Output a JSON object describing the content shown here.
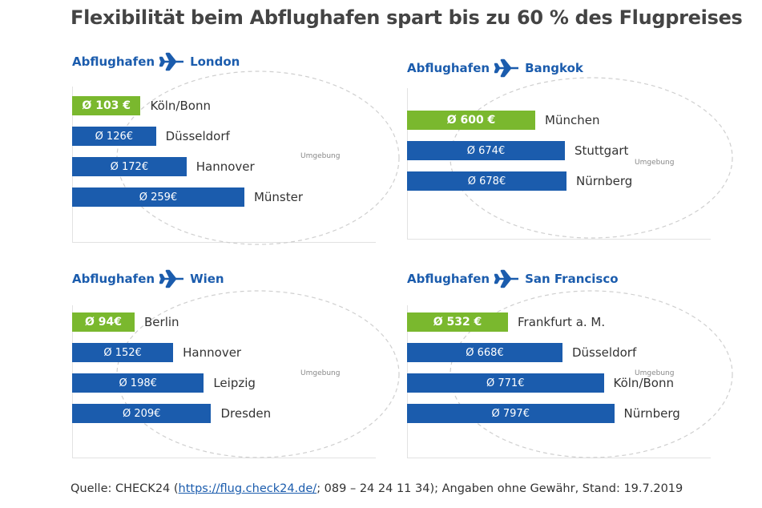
{
  "title": "Flexibilität beim Abflughafen spart bis zu 60 % des Flugpreises",
  "source": {
    "prefix": "Quelle: CHECK24 (",
    "link": "https://flug.check24.de/",
    "suffix": "; 089 – 24 24 11 34); Angaben ohne Gewähr, Stand: 19.7.2019"
  },
  "colors": {
    "highlight": "#7ab82e",
    "bar": "#1b5cad",
    "heading": "#1b5cad"
  },
  "icons": {
    "destination": "airplane-icon"
  },
  "chart_data": [
    {
      "type": "bar",
      "origin_label": "Abflughafen",
      "destination": "London",
      "area_label": "Umgebung",
      "categories": [
        "Köln/Bonn",
        "Düsseldorf",
        "Hannover",
        "Münster"
      ],
      "values": [
        103,
        126,
        172,
        259
      ],
      "value_labels": [
        "Ø 103 €",
        "Ø 126€",
        "Ø 172€",
        "Ø 259€"
      ],
      "highlight_index": 0
    },
    {
      "type": "bar",
      "origin_label": "Abflughafen",
      "destination": "Bangkok",
      "area_label": "Umgebung",
      "categories": [
        "München",
        "Stuttgart",
        "Nürnberg"
      ],
      "values": [
        600,
        674,
        678
      ],
      "value_labels": [
        "Ø 600 €",
        "Ø 674€",
        "Ø 678€"
      ],
      "highlight_index": 0
    },
    {
      "type": "bar",
      "origin_label": "Abflughafen",
      "destination": "Wien",
      "area_label": "Umgebung",
      "categories": [
        "Berlin",
        "Hannover",
        "Leipzig",
        "Dresden"
      ],
      "values": [
        94,
        152,
        198,
        209
      ],
      "value_labels": [
        "Ø 94€",
        "Ø 152€",
        "Ø 198€",
        "Ø 209€"
      ],
      "highlight_index": 0
    },
    {
      "type": "bar",
      "origin_label": "Abflughafen",
      "destination": "San Francisco",
      "area_label": "Umgebung",
      "categories": [
        "Frankfurt a. M.",
        "Düsseldorf",
        "Köln/Bonn",
        "Nürnberg"
      ],
      "values": [
        532,
        668,
        771,
        797
      ],
      "value_labels": [
        "Ø 532 €",
        "Ø 668€",
        "Ø 771€",
        "Ø 797€"
      ],
      "highlight_index": 0
    }
  ]
}
